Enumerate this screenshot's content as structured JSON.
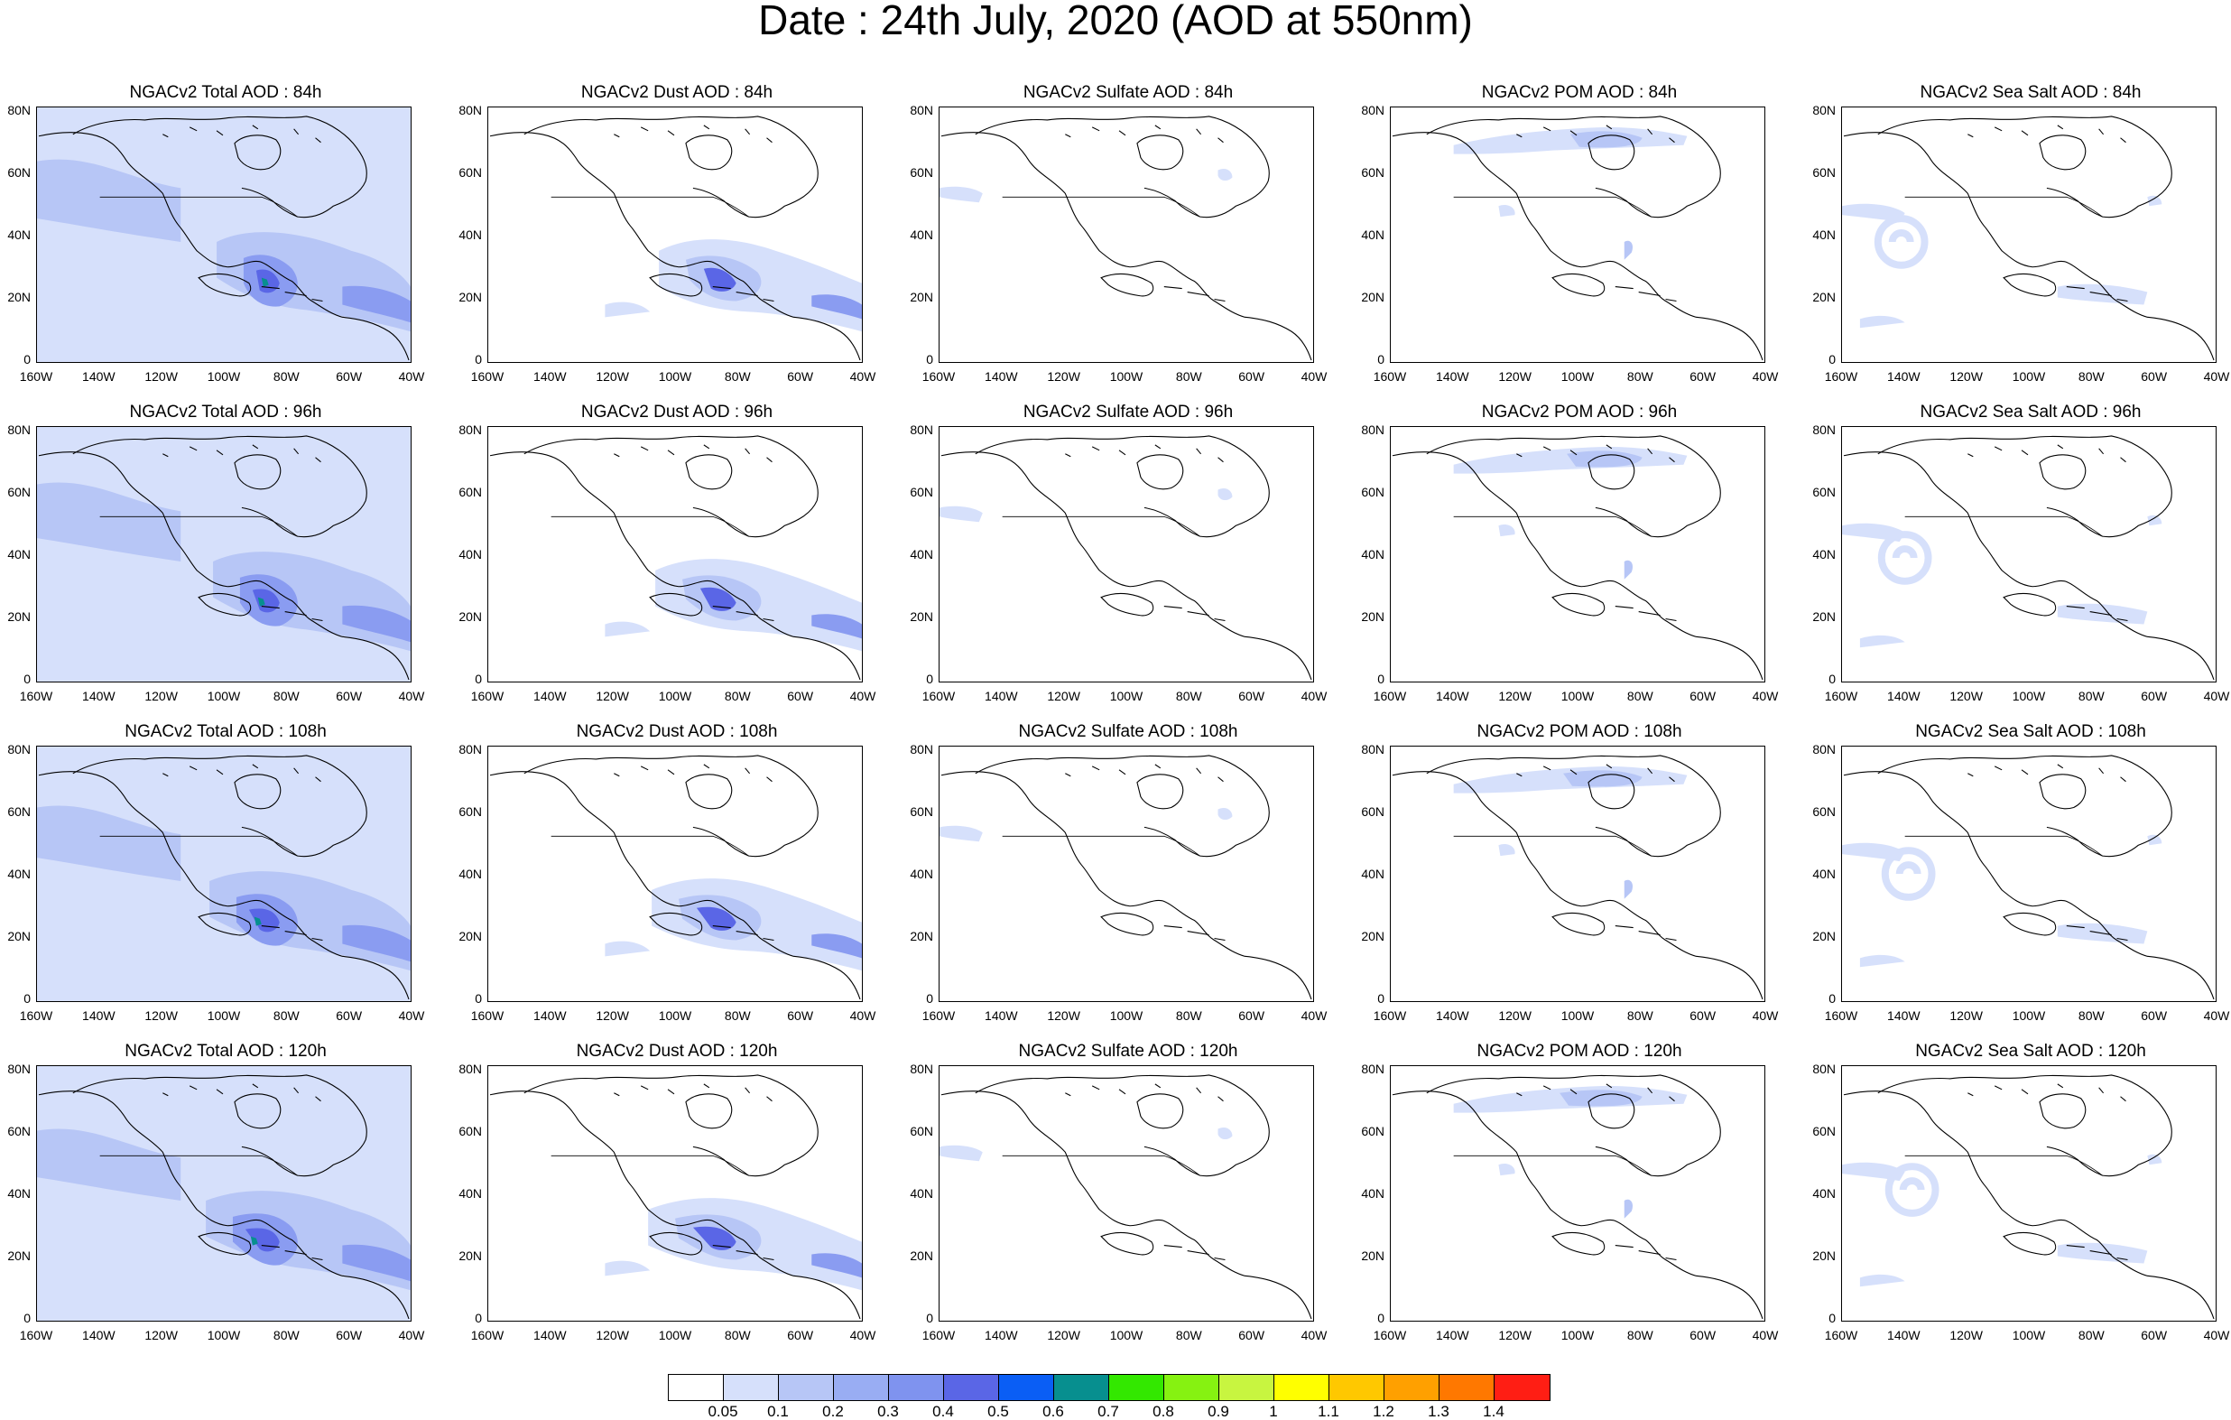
{
  "title": "Date : 24th July, 2020 (AOD at 550nm)",
  "y_ticks": [
    "80N",
    "60N",
    "40N",
    "20N",
    "0"
  ],
  "x_ticks": [
    "160W",
    "140W",
    "120W",
    "100W",
    "80W",
    "60W",
    "40W"
  ],
  "panels": [
    {
      "title": "NGACv2 Total AOD : 84h",
      "species": "total",
      "hour": 84
    },
    {
      "title": "NGACv2 Dust AOD : 84h",
      "species": "dust",
      "hour": 84
    },
    {
      "title": "NGACv2 Sulfate AOD : 84h",
      "species": "sulfate",
      "hour": 84
    },
    {
      "title": "NGACv2 POM AOD : 84h",
      "species": "pom",
      "hour": 84
    },
    {
      "title": "NGACv2 Sea Salt AOD : 84h",
      "species": "seasalt",
      "hour": 84
    },
    {
      "title": "NGACv2 Total AOD : 96h",
      "species": "total",
      "hour": 96
    },
    {
      "title": "NGACv2 Dust AOD : 96h",
      "species": "dust",
      "hour": 96
    },
    {
      "title": "NGACv2 Sulfate AOD : 96h",
      "species": "sulfate",
      "hour": 96
    },
    {
      "title": "NGACv2 POM AOD : 96h",
      "species": "pom",
      "hour": 96
    },
    {
      "title": "NGACv2 Sea Salt AOD : 96h",
      "species": "seasalt",
      "hour": 96
    },
    {
      "title": "NGACv2 Total AOD : 108h",
      "species": "total",
      "hour": 108
    },
    {
      "title": "NGACv2 Dust AOD : 108h",
      "species": "dust",
      "hour": 108
    },
    {
      "title": "NGACv2 Sulfate AOD : 108h",
      "species": "sulfate",
      "hour": 108
    },
    {
      "title": "NGACv2 POM AOD : 108h",
      "species": "pom",
      "hour": 108
    },
    {
      "title": "NGACv2 Sea Salt AOD : 108h",
      "species": "seasalt",
      "hour": 108
    },
    {
      "title": "NGACv2 Total AOD : 120h",
      "species": "total",
      "hour": 120
    },
    {
      "title": "NGACv2 Dust AOD : 120h",
      "species": "dust",
      "hour": 120
    },
    {
      "title": "NGACv2 Sulfate AOD : 120h",
      "species": "sulfate",
      "hour": 120
    },
    {
      "title": "NGACv2 POM AOD : 120h",
      "species": "pom",
      "hour": 120
    },
    {
      "title": "NGACv2 Sea Salt  AOD : 120h",
      "species": "seasalt",
      "hour": 120
    }
  ],
  "legend": {
    "labels": [
      "0.05",
      "0.1",
      "0.2",
      "0.3",
      "0.4",
      "0.5",
      "0.6",
      "0.7",
      "0.8",
      "0.9",
      "1",
      "1.1",
      "1.2",
      "1.3",
      "1.4"
    ],
    "colors": [
      "#ffffff",
      "#d6e0fb",
      "#b7c6f6",
      "#99adf3",
      "#7f93ef",
      "#5a66e6",
      "#0a5ef5",
      "#078f8f",
      "#33e800",
      "#86f211",
      "#c8f540",
      "#ffff00",
      "#ffc800",
      "#ffa000",
      "#ff7800",
      "#ff1e14"
    ]
  },
  "colors": {
    "aod_light": "#d6e0fb",
    "aod_mid": "#b7c6f6",
    "aod_high": "#8a9cf1",
    "aod_peak": "#5a66e6",
    "aod_core": "#078f8f",
    "coastline": "#000000"
  }
}
